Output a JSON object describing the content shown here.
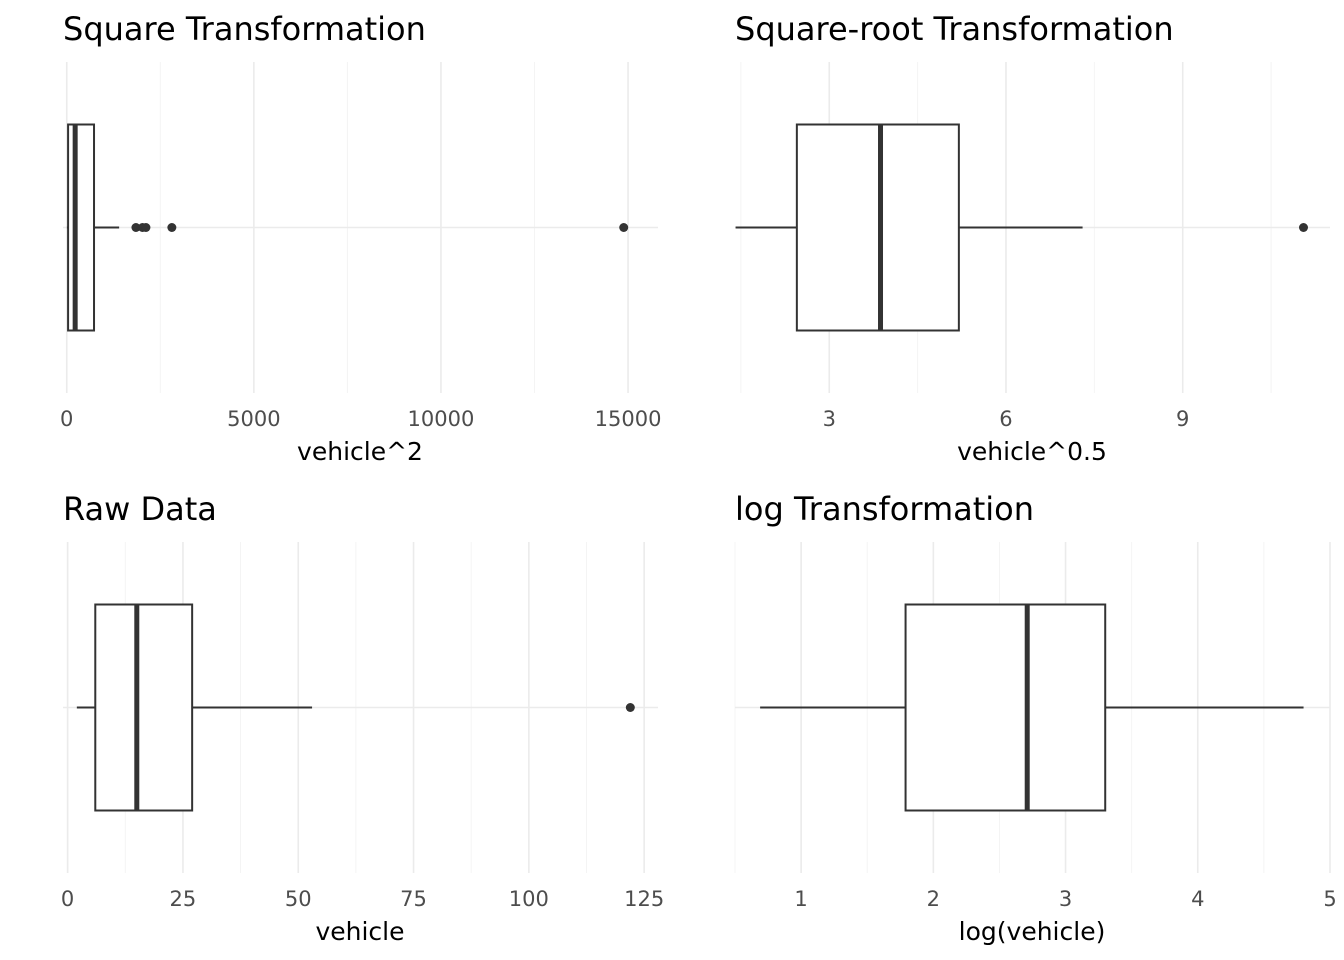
{
  "chart_data": [
    {
      "type": "boxplot",
      "title": "Square Transformation",
      "xlabel": "vehicle^2",
      "xlim": [
        -100,
        15800
      ],
      "ticks": [
        0,
        5000,
        10000,
        15000
      ],
      "tick_labels": [
        "0",
        "5000",
        "10000",
        "15000"
      ],
      "minor_ticks": [
        2500,
        7500,
        12500
      ],
      "box": {
        "whisker_low": 4,
        "q1": 36,
        "median": 225,
        "q3": 729,
        "whisker_high": 1400
      },
      "outliers": [
        1849,
        2025,
        2116,
        2809,
        14884
      ]
    },
    {
      "type": "boxplot",
      "title": "Square-root Transformation",
      "xlabel": "vehicle^0.5",
      "xlim": [
        1.4,
        11.5
      ],
      "ticks": [
        3,
        6,
        9
      ],
      "tick_labels": [
        "3",
        "6",
        "9"
      ],
      "minor_ticks": [
        1.5,
        4.5,
        7.5,
        10.5
      ],
      "box": {
        "whisker_low": 1.41,
        "q1": 2.45,
        "median": 3.87,
        "q3": 5.2,
        "whisker_high": 7.3
      },
      "outliers": [
        11.05
      ]
    },
    {
      "type": "boxplot",
      "title": "Raw Data",
      "xlabel": "vehicle",
      "xlim": [
        -1,
        128
      ],
      "ticks": [
        0,
        25,
        50,
        75,
        100,
        125
      ],
      "tick_labels": [
        "0",
        "25",
        "50",
        "75",
        "100",
        "125"
      ],
      "minor_ticks": [
        12.5,
        37.5,
        62.5,
        87.5,
        112.5
      ],
      "box": {
        "whisker_low": 2,
        "q1": 6,
        "median": 15,
        "q3": 27,
        "whisker_high": 53
      },
      "outliers": [
        122
      ]
    },
    {
      "type": "boxplot",
      "title": "log Transformation",
      "xlabel": "log(vehicle)",
      "xlim": [
        0.5,
        5
      ],
      "ticks": [
        1,
        2,
        3,
        4,
        5
      ],
      "tick_labels": [
        "1",
        "2",
        "3",
        "4",
        "5"
      ],
      "minor_ticks": [
        0.5,
        1.5,
        2.5,
        3.5,
        4.5
      ],
      "box": {
        "whisker_low": 0.69,
        "q1": 1.79,
        "median": 2.71,
        "q3": 3.3,
        "whisker_high": 4.8
      },
      "outliers": []
    }
  ]
}
